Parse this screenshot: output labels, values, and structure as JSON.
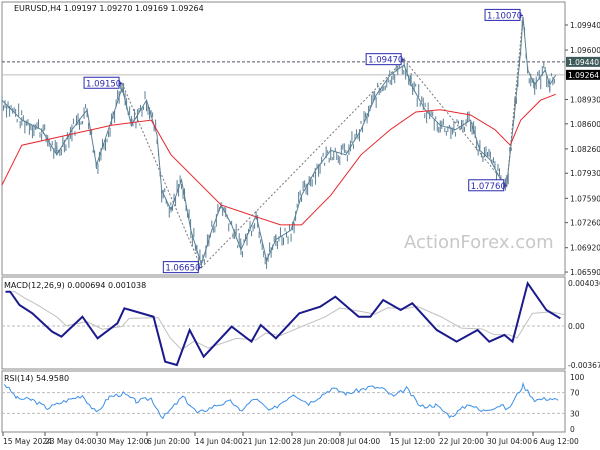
{
  "chart_data": [
    {
      "type": "line",
      "header": "EURUSD,H4  1.09197 1.09270 1.09169 1.09264",
      "symbol": "EURUSD,H4",
      "ohlc": [
        "1.09197",
        "1.09270",
        "1.09169",
        "1.09264"
      ],
      "ylim": [
        1.0659,
        1.101
      ],
      "y_ticks": [
        "1.09940",
        "1.09600",
        "1.08930",
        "1.08600",
        "1.08260",
        "1.07930",
        "1.07590",
        "1.07260",
        "1.06920",
        "1.06590"
      ],
      "current_price": "1.09264",
      "level_line": "1.09440",
      "price": [
        [
          0,
          1.0892
        ],
        [
          17,
          1.0865
        ],
        [
          34,
          1.0852
        ],
        [
          47,
          1.0818
        ],
        [
          60,
          1.0852
        ],
        [
          73,
          1.0879
        ],
        [
          81,
          1.0804
        ],
        [
          94,
          1.0865
        ],
        [
          103,
          1.0909
        ],
        [
          111,
          1.0858
        ],
        [
          124,
          1.0892
        ],
        [
          133,
          1.0845
        ],
        [
          137,
          1.077
        ],
        [
          145,
          1.0743
        ],
        [
          154,
          1.0784
        ],
        [
          162,
          1.0716
        ],
        [
          171,
          1.0669
        ],
        [
          180,
          1.0716
        ],
        [
          188,
          1.075
        ],
        [
          197,
          1.0723
        ],
        [
          205,
          1.0689
        ],
        [
          218,
          1.0736
        ],
        [
          227,
          1.0675
        ],
        [
          235,
          1.0703
        ],
        [
          248,
          1.0716
        ],
        [
          257,
          1.0763
        ],
        [
          269,
          1.0797
        ],
        [
          282,
          1.0824
        ],
        [
          295,
          1.0818
        ],
        [
          308,
          1.0852
        ],
        [
          321,
          1.0899
        ],
        [
          333,
          1.0926
        ],
        [
          345,
          1.094
        ],
        [
          351,
          1.0913
        ],
        [
          363,
          1.0879
        ],
        [
          376,
          1.0858
        ],
        [
          389,
          1.0852
        ],
        [
          402,
          1.0865
        ],
        [
          410,
          1.0824
        ],
        [
          419,
          1.0811
        ],
        [
          428,
          1.0784
        ],
        [
          433,
          1.0777
        ],
        [
          440,
          1.0879
        ],
        [
          445,
          1.096
        ],
        [
          447,
          1.1005
        ],
        [
          451,
          1.0933
        ],
        [
          457,
          1.0913
        ],
        [
          466,
          1.0933
        ],
        [
          470,
          1.0913
        ],
        [
          475,
          1.0926
        ]
      ],
      "moving_average": [
        [
          0,
          1.0777
        ],
        [
          17,
          1.0831
        ],
        [
          94,
          1.0858
        ],
        [
          128,
          1.0865
        ],
        [
          145,
          1.0818
        ],
        [
          188,
          1.075
        ],
        [
          214,
          1.0736
        ],
        [
          239,
          1.0723
        ],
        [
          257,
          1.0723
        ],
        [
          282,
          1.0763
        ],
        [
          308,
          1.0818
        ],
        [
          333,
          1.0852
        ],
        [
          355,
          1.0876
        ],
        [
          376,
          1.0879
        ],
        [
          402,
          1.0872
        ],
        [
          423,
          1.0852
        ],
        [
          436,
          1.0831
        ],
        [
          445,
          1.0865
        ],
        [
          462,
          1.0892
        ],
        [
          475,
          1.09
        ]
      ],
      "annotations": [
        {
          "text": "1.09150",
          "bar": 103,
          "price": 1.0915
        },
        {
          "text": "1.06650",
          "bar": 171,
          "price": 1.0665
        },
        {
          "text": "1.09470",
          "bar": 345,
          "price": 1.0947
        },
        {
          "text": "1.07760",
          "bar": 433,
          "price": 1.0776
        },
        {
          "text": "1.10070",
          "bar": 447,
          "price": 1.1007
        }
      ],
      "watermark": "ActionForex.com",
      "colors": {
        "price": "#5a7f95",
        "ma": "#e8262b",
        "label": "#2a2ab0"
      }
    },
    {
      "type": "line",
      "header": "MACD(12,26,9) 0.000694 0.001038",
      "ylim": [
        -0.00367,
        0.004036
      ],
      "y_ticks": [
        "0.004036",
        "0.00",
        "-0.00367"
      ],
      "macd": [
        [
          3,
          0.00322
        ],
        [
          7,
          0.00322
        ],
        [
          15,
          0.00197
        ],
        [
          26,
          0.00119
        ],
        [
          43,
          -0.00053
        ],
        [
          51,
          -0.001
        ],
        [
          69,
          0.00087
        ],
        [
          82,
          -0.00116
        ],
        [
          99,
          0.00025
        ],
        [
          105,
          0.00166
        ],
        [
          130,
          0.00087
        ],
        [
          140,
          -0.00335
        ],
        [
          150,
          -0.00366
        ],
        [
          161,
          -0.00038
        ],
        [
          173,
          -0.00288
        ],
        [
          197,
          -6e-05
        ],
        [
          214,
          -0.00147
        ],
        [
          222,
          9e-05
        ],
        [
          235,
          -0.00116
        ],
        [
          255,
          0.00119
        ],
        [
          273,
          0.00181
        ],
        [
          286,
          0.00275
        ],
        [
          306,
          0.00087
        ],
        [
          316,
          0.00087
        ],
        [
          327,
          0.00244
        ],
        [
          342,
          0.0015
        ],
        [
          352,
          0.00213
        ],
        [
          373,
          -0.00038
        ],
        [
          390,
          -0.00147
        ],
        [
          408,
          -0.00038
        ],
        [
          418,
          -0.00147
        ],
        [
          431,
          -0.00084
        ],
        [
          438,
          -0.00147
        ],
        [
          451,
          0.00401
        ],
        [
          467,
          0.0015
        ],
        [
          479,
          0.00072
        ]
      ],
      "colors": {
        "macd": "#1a1a8c",
        "signal": "#c0c0c0"
      }
    },
    {
      "type": "line",
      "header": "RSI(14) 54.9580",
      "ylim": [
        0,
        100
      ],
      "y_ticks": [
        "100",
        "70",
        "30",
        "0"
      ],
      "levels": [
        70,
        30
      ],
      "rsi": [
        [
          2,
          87
        ],
        [
          13,
          59
        ],
        [
          26,
          56
        ],
        [
          39,
          40
        ],
        [
          53,
          53
        ],
        [
          69,
          65
        ],
        [
          81,
          30
        ],
        [
          92,
          62
        ],
        [
          104,
          68
        ],
        [
          115,
          53
        ],
        [
          128,
          59
        ],
        [
          138,
          21
        ],
        [
          155,
          62
        ],
        [
          168,
          30
        ],
        [
          184,
          46
        ],
        [
          197,
          53
        ],
        [
          204,
          34
        ],
        [
          217,
          59
        ],
        [
          230,
          34
        ],
        [
          250,
          68
        ],
        [
          263,
          49
        ],
        [
          283,
          78
        ],
        [
          296,
          68
        ],
        [
          316,
          81
        ],
        [
          326,
          78
        ],
        [
          336,
          62
        ],
        [
          347,
          78
        ],
        [
          359,
          43
        ],
        [
          372,
          46
        ],
        [
          385,
          24
        ],
        [
          401,
          49
        ],
        [
          411,
          34
        ],
        [
          428,
          46
        ],
        [
          434,
          37
        ],
        [
          447,
          84
        ],
        [
          457,
          56
        ],
        [
          470,
          59
        ],
        [
          477,
          55
        ]
      ],
      "colors": {
        "rsi": "#3d8fe8"
      }
    }
  ],
  "x_ticks": [
    "15 May 2024",
    "23 May 04:00",
    "30 May 12:00",
    "6 Jun 20:00",
    "14 Jun 04:00",
    "21 Jun 12:00",
    "28 Jun 20:00",
    "8 Jul 04:00",
    "15 Jul 12:00",
    "22 Jul 20:00",
    "30 Jul 04:00",
    "6 Aug 12:00"
  ]
}
